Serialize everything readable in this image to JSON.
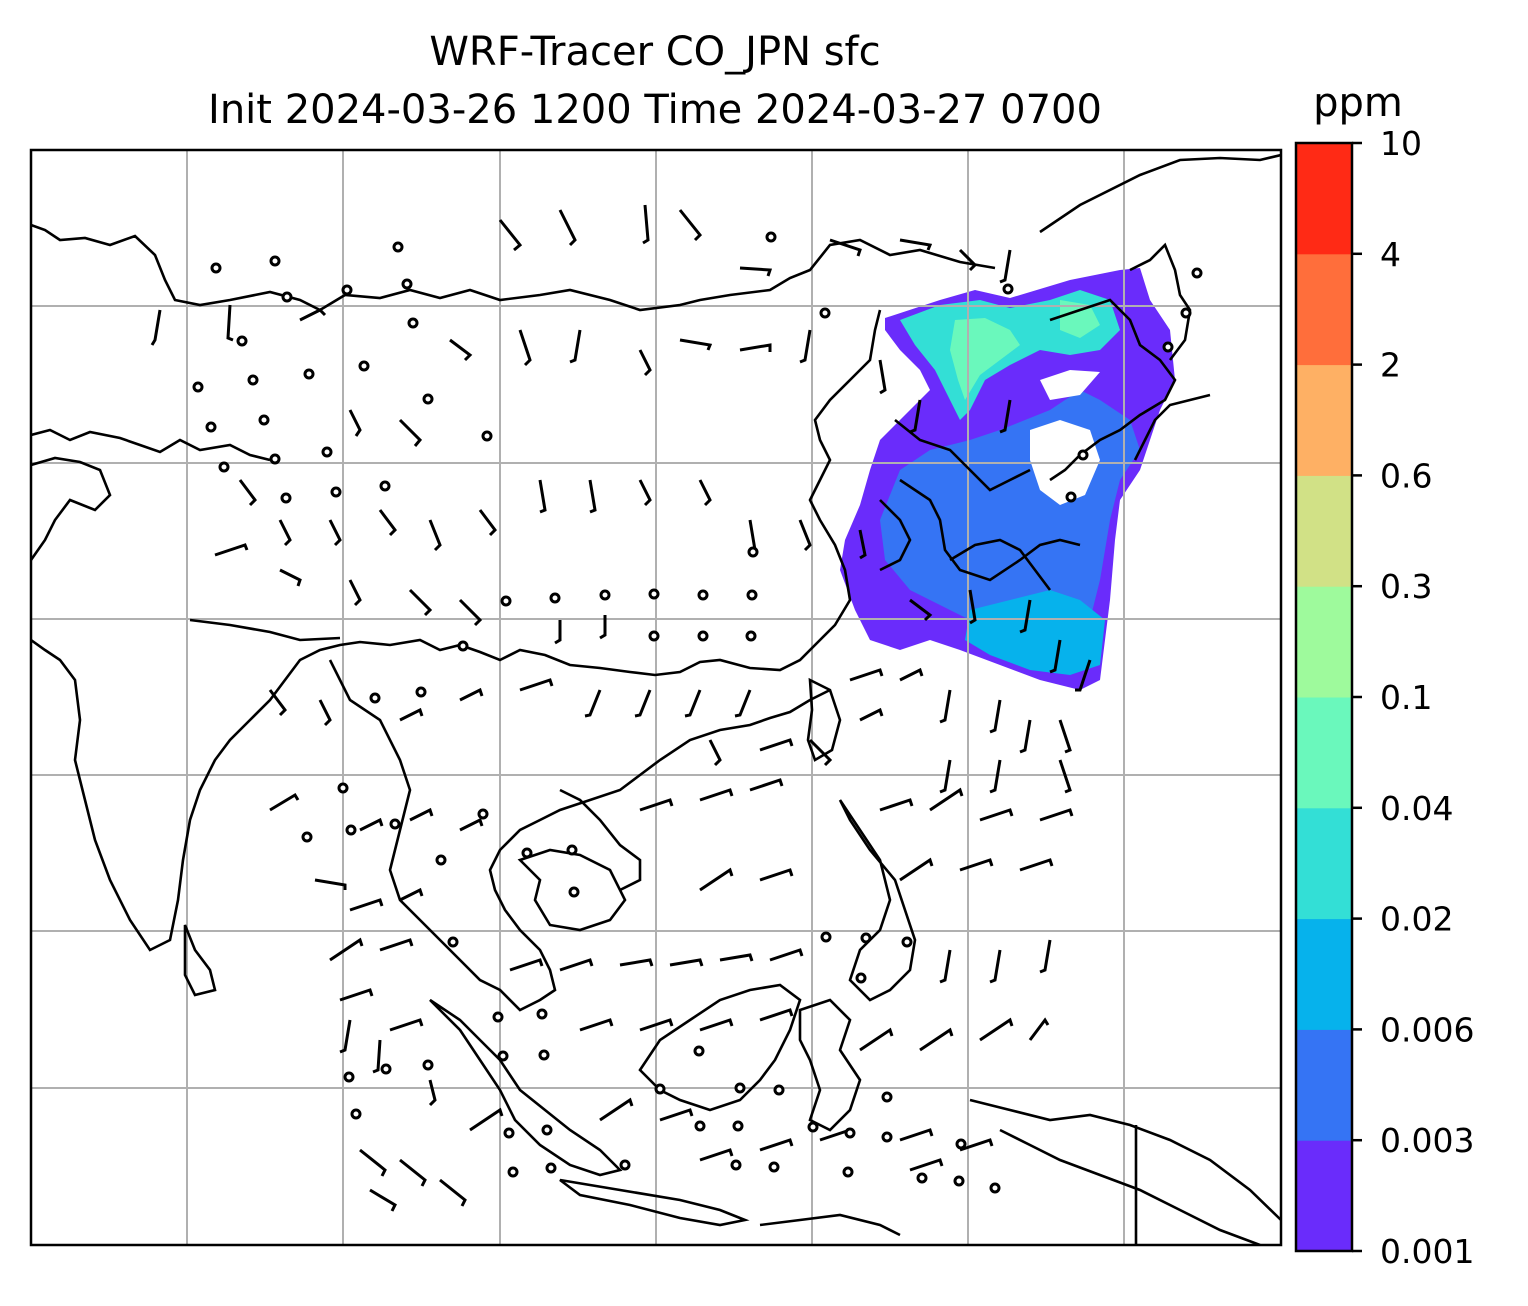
{
  "title": "WRF-Tracer CO_JPN sfc",
  "subtitle": "Init 2024-03-26 1200 Time 2024-03-27 0700",
  "colorbar": {
    "unit": "ppm",
    "ticks": [
      "0.001",
      "0.003",
      "0.006",
      "0.02",
      "0.04",
      "0.1",
      "0.3",
      "0.6",
      "2",
      "4",
      "10"
    ],
    "colors": [
      "#6a2cfb",
      "#3574f4",
      "#06b2ec",
      "#33dfd6",
      "#6af8bc",
      "#9efa9c",
      "#d1e186",
      "#feb064",
      "#ff6e3b",
      "#ff2a15"
    ]
  },
  "map": {
    "gridlines": true,
    "land_color": "#ffffff",
    "coastline_color": "#000000",
    "grid_color": "#b0b0b0"
  }
}
